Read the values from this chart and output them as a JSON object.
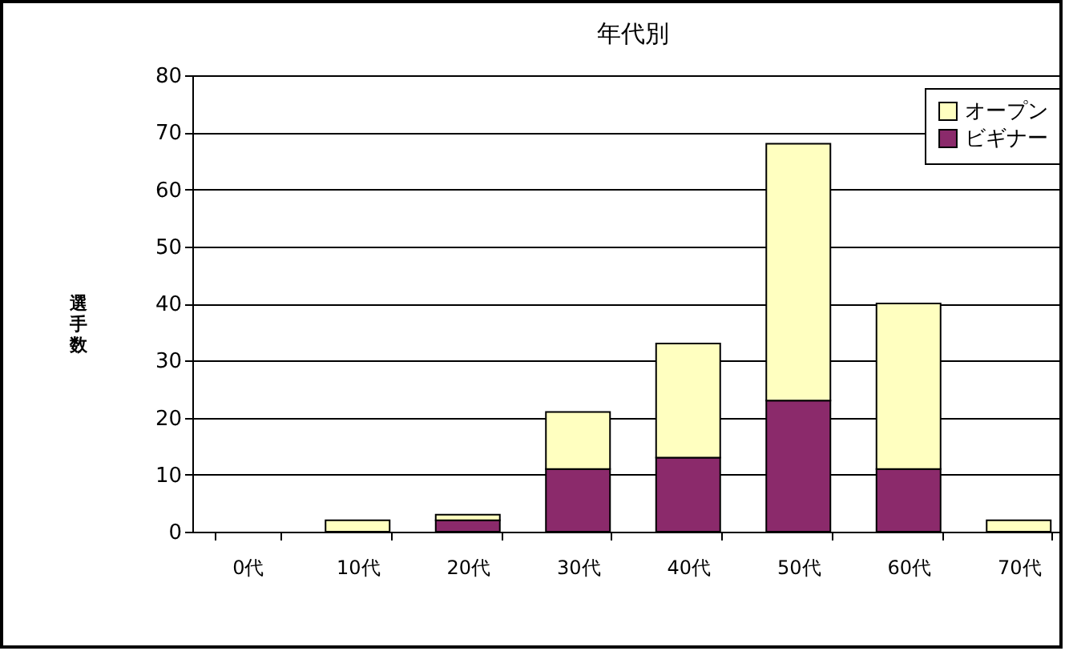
{
  "chart_data": {
    "type": "bar",
    "stacked": true,
    "title": "年代別",
    "ylabel": "選手数",
    "categories": [
      "0代",
      "10代",
      "20代",
      "30代",
      "40代",
      "50代",
      "60代",
      "70代"
    ],
    "series": [
      {
        "name": "ビギナー",
        "color": "#8b2a6b",
        "values": [
          0,
          0,
          2,
          11,
          13,
          23,
          11,
          0
        ]
      },
      {
        "name": "オープン",
        "color": "#ffffc0",
        "values": [
          0,
          2,
          1,
          10,
          20,
          45,
          29,
          2
        ]
      }
    ],
    "ylim": [
      0,
      80
    ],
    "yticks": [
      0,
      10,
      20,
      30,
      40,
      50,
      60,
      70,
      80
    ],
    "grid": "y",
    "legend": "top right"
  }
}
